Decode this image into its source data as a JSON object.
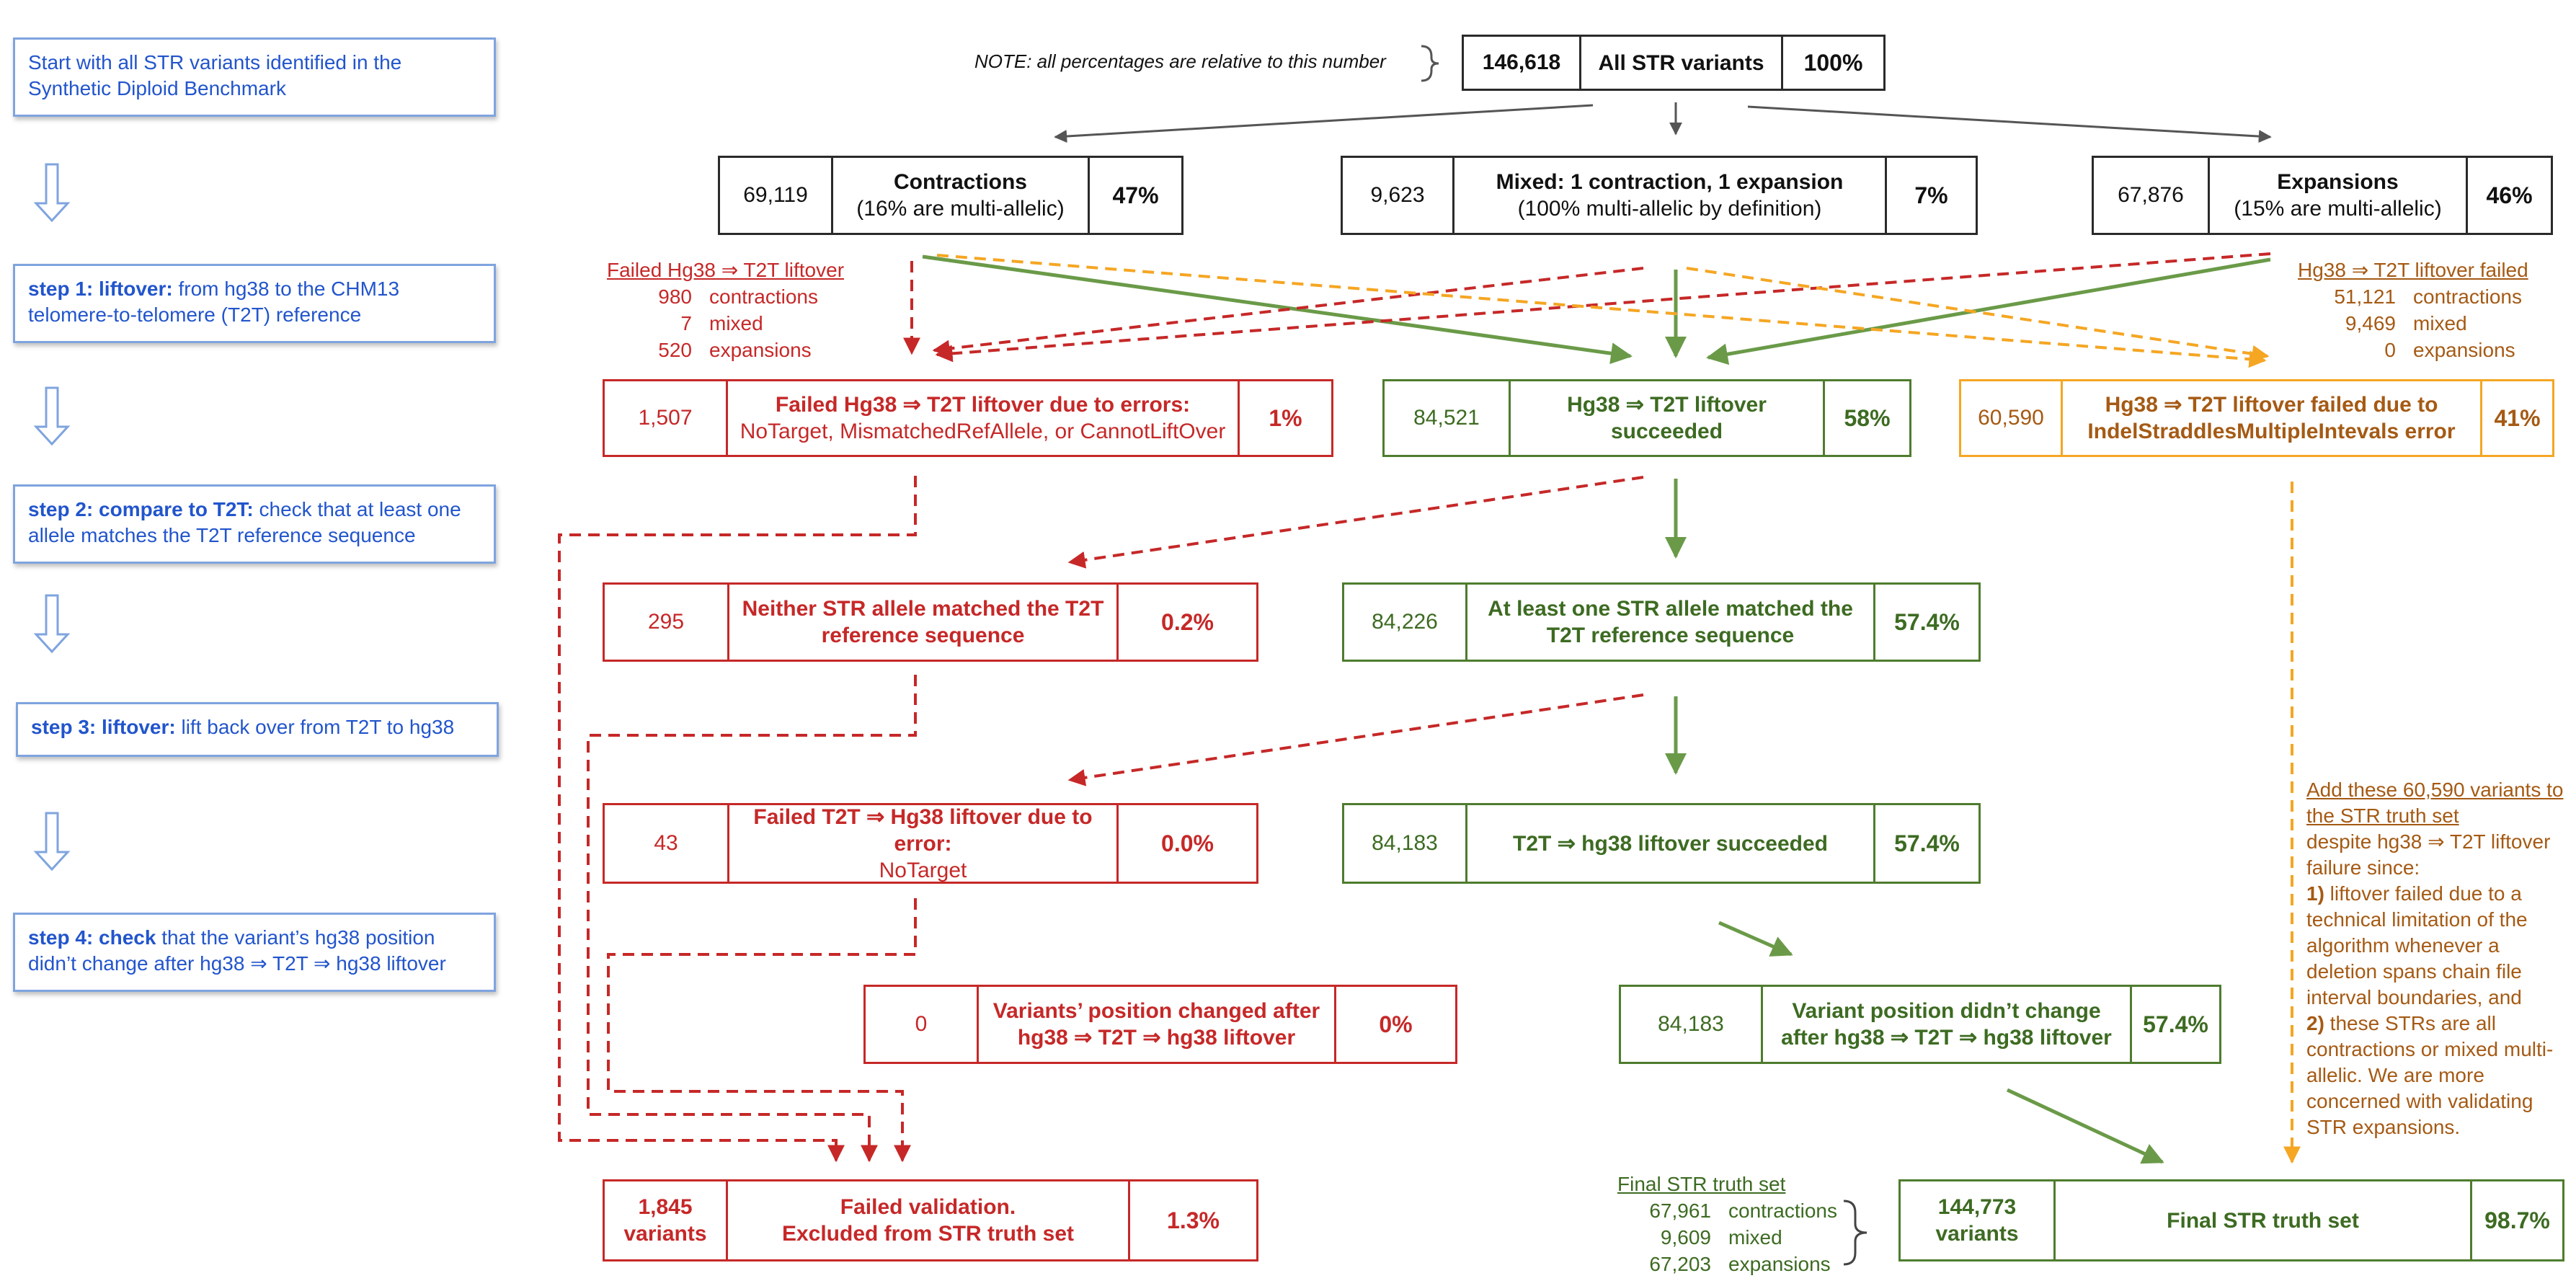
{
  "steps": [
    {
      "bold": "",
      "text": "Start with all STR variants identified in the Synthetic Diploid Benchmark"
    },
    {
      "bold": "step 1: liftover:",
      "text": " from hg38 to the CHM13 telomere-to-telomere (T2T) reference"
    },
    {
      "bold": "step 2: compare to T2T:",
      "text": " check that at least one allele matches the T2T reference sequence"
    },
    {
      "bold": "step 3: liftover:",
      "text": " lift back over from T2T to hg38"
    },
    {
      "bold": "step 4: check",
      "text": " that the variant’s hg38 position didn’t change after hg38 ⇒ T2T ⇒ hg38 liftover"
    }
  ],
  "note": "NOTE: all percentages are relative to this number",
  "boxes": {
    "all": {
      "num": "146,618",
      "label": "All STR variants",
      "pct": "100%"
    },
    "contractions": {
      "num": "69,119",
      "label_bold": "Contractions",
      "label_sub": "(16% are multi-allelic)",
      "pct": "47%"
    },
    "mixed": {
      "num": "9,623",
      "label_bold": "Mixed: 1 contraction, 1 expansion",
      "label_sub": "(100% multi-allelic by definition)",
      "pct": "7%"
    },
    "expansions": {
      "num": "67,876",
      "label_bold": "Expansions",
      "label_sub": "(15% are multi-allelic)",
      "pct": "46%"
    },
    "fail1": {
      "num": "1,507",
      "label_bold": "Failed Hg38 ⇒ T2T liftover due to errors:",
      "label_sub": "NoTarget, MismatchedRefAllele, or CannotLiftOver",
      "pct": "1%"
    },
    "succ1": {
      "num": "84,521",
      "label_bold": "Hg38 ⇒ T2T liftover succeeded",
      "pct": "58%"
    },
    "indel": {
      "num": "60,590",
      "label_bold": "Hg38 ⇒ T2T liftover failed due to IndelStraddlesMultipleIntevals error",
      "pct": "41%"
    },
    "fail2": {
      "num": "295",
      "label_bold": "Neither STR allele matched the T2T reference sequence",
      "pct": "0.2%"
    },
    "succ2": {
      "num": "84,226",
      "label_bold": "At least one STR allele matched the T2T reference sequence",
      "pct": "57.4%"
    },
    "fail3": {
      "num": "43",
      "label_bold": "Failed T2T ⇒ Hg38 liftover due to error:",
      "label_sub": "NoTarget",
      "pct": "0.0%"
    },
    "succ3": {
      "num": "84,183",
      "label_bold": "T2T ⇒ hg38 liftover succeeded",
      "pct": "57.4%"
    },
    "fail4": {
      "num": "0",
      "label_bold": "Variants’ position changed after hg38 ⇒ T2T ⇒ hg38 liftover",
      "pct": "0%"
    },
    "succ4": {
      "num": "84,183",
      "label_bold": "Variant position didn’t change after hg38 ⇒ T2T ⇒ hg38 liftover",
      "pct": "57.4%"
    },
    "failed": {
      "num_top": "1,845",
      "num_bottom": "variants",
      "label_top": "Failed validation.",
      "label_bottom": "Excluded from STR truth set",
      "pct": "1.3%"
    },
    "final": {
      "num_top": "144,773",
      "num_bottom": "variants",
      "label": "Final STR truth set",
      "pct": "98.7%"
    }
  },
  "failed_liftover_list": {
    "title": "Failed Hg38 ⇒ T2T liftover",
    "items": [
      {
        "n": "980",
        "what": "contractions"
      },
      {
        "n": "7",
        "what": "mixed"
      },
      {
        "n": "520",
        "what": "expansions"
      }
    ]
  },
  "indel_list": {
    "title": "Hg38 ⇒ T2T liftover failed",
    "items": [
      {
        "n": "51,121",
        "what": "contractions"
      },
      {
        "n": "9,469",
        "what": "mixed"
      },
      {
        "n": "0",
        "what": "expansions"
      }
    ]
  },
  "final_list": {
    "title": "Final STR truth set",
    "items": [
      {
        "n": "67,961",
        "what": "contractions"
      },
      {
        "n": "9,609",
        "what": "mixed"
      },
      {
        "n": "67,203",
        "what": "expansions"
      }
    ]
  },
  "side_note": {
    "title": "Add these 60,590 variants to the STR truth set",
    "text1": "despite hg38 ⇒ T2T liftover failure since:",
    "b1": "1)",
    "text2": " liftover failed due to a technical limitation of the algorithm whenever a deletion spans chain file interval boundaries, and",
    "b2": "2)",
    "text3": " these STRs are all contractions or mixed multi-allelic. We are more concerned with validating STR expansions."
  },
  "colors": {
    "red": "#c62828",
    "green": "#5a8a3a",
    "orange": "#f5a623",
    "blue": "#2255cc",
    "gray": "#555555"
  }
}
